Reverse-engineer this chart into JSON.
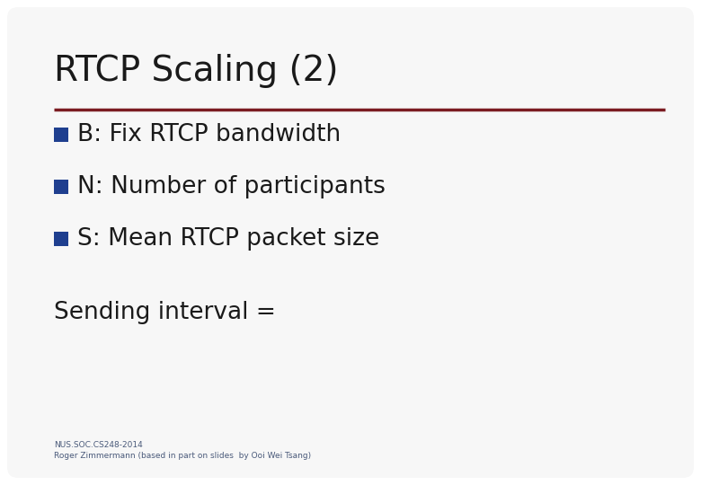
{
  "title": "RTCP Scaling (2)",
  "title_color": "#1a1a1a",
  "title_fontsize": 28,
  "separator_color": "#7b1c22",
  "separator_linewidth": 2.5,
  "bullet_color": "#1f3f8f",
  "bullet_items": [
    "B: Fix RTCP bandwidth",
    "N: Number of participants",
    "S: Mean RTCP packet size"
  ],
  "bullet_fontsize": 19,
  "extra_text": "Sending interval =",
  "extra_fontsize": 19,
  "extra_color": "#1a1a1a",
  "footer_line1": "NUS.SOC.CS248-2014",
  "footer_line2": "Roger Zimmermann (based in part on slides  by Ooi Wei Tsang)",
  "footer_fontsize": 6.5,
  "footer_color": "#4a5a7a",
  "background_color": "#ffffff"
}
